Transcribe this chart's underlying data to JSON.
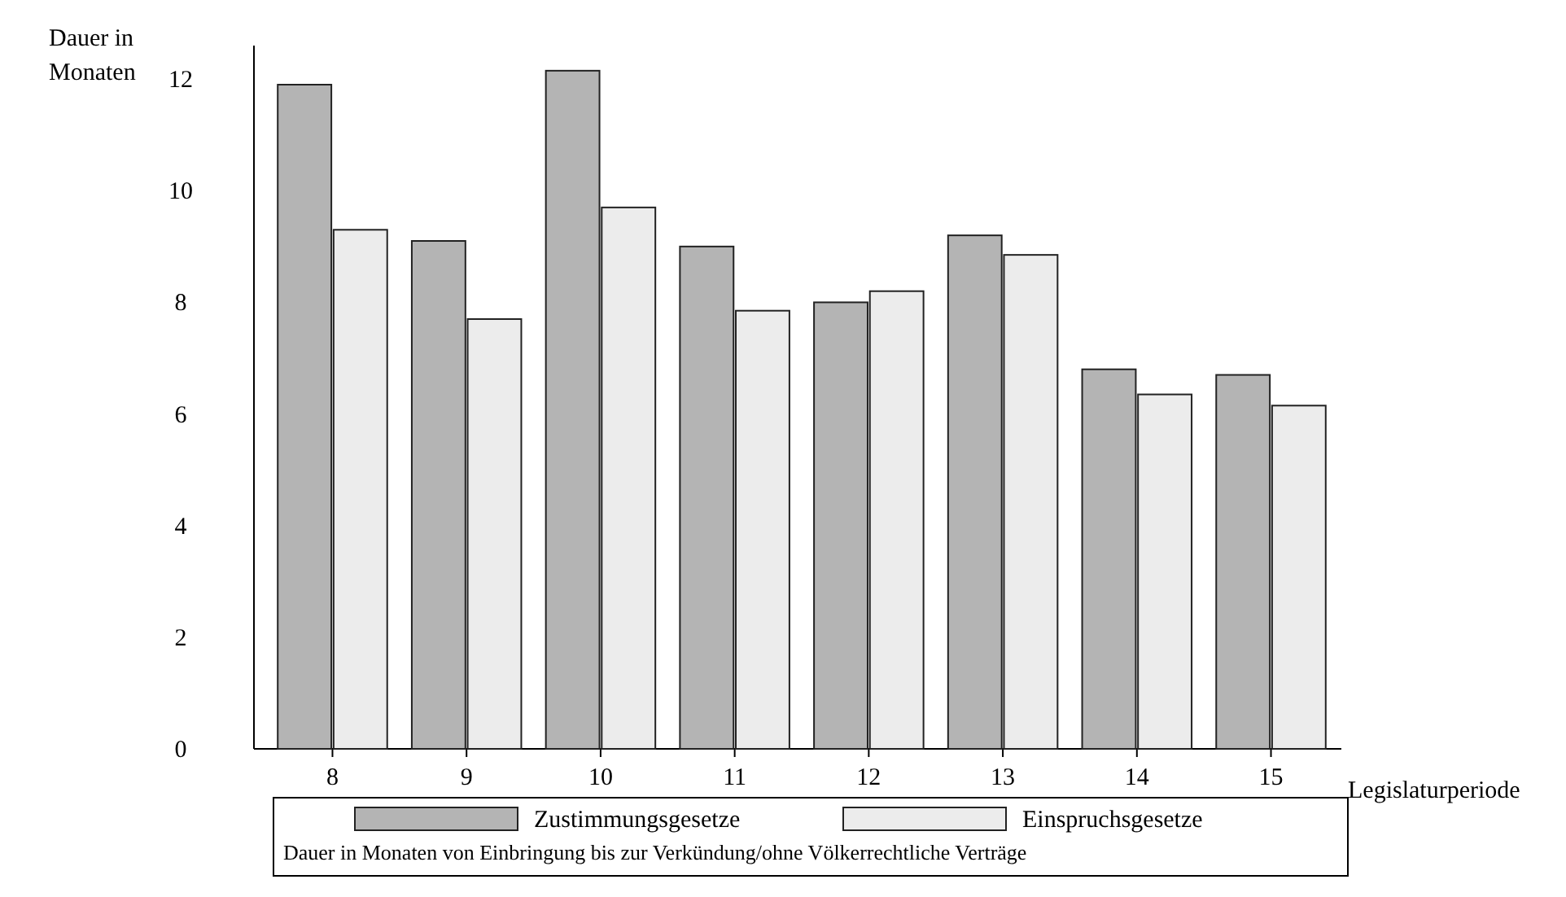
{
  "chart_data": {
    "type": "bar",
    "ylabel": "Dauer in Monaten",
    "xlabel": "Legislaturperiode",
    "categories": [
      "8",
      "9",
      "10",
      "11",
      "12",
      "13",
      "14",
      "15"
    ],
    "series": [
      {
        "name": "Zustimmungsgesetze",
        "color": "#b4b4b4",
        "values": [
          11.9,
          9.1,
          12.15,
          9.0,
          8.0,
          9.2,
          6.8,
          6.7
        ]
      },
      {
        "name": "Einspruchsgesetze",
        "color": "#ececec",
        "values": [
          9.3,
          7.7,
          9.7,
          7.85,
          8.2,
          8.85,
          6.35,
          6.15
        ]
      }
    ],
    "ylim": [
      0,
      12.6
    ],
    "yticks": [
      0,
      2,
      4,
      6,
      8,
      10,
      12
    ],
    "legend": "bottom",
    "annotations": [
      "Dauer in Monaten von Einbringung bis zur Verkündung/ohne Völkerrechtliche Verträge"
    ]
  }
}
